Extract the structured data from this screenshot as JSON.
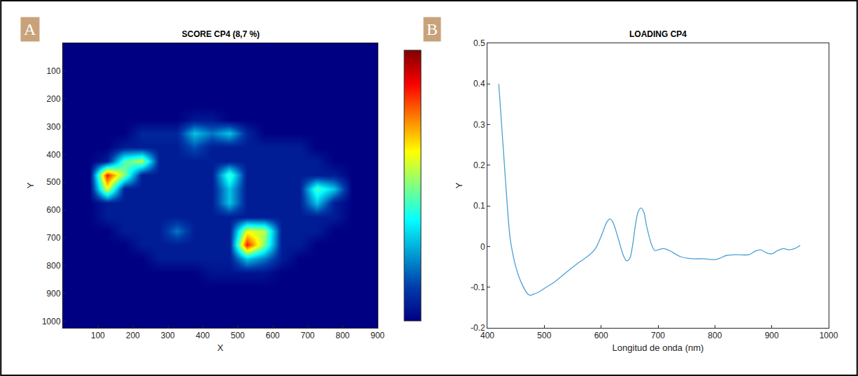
{
  "chart_data": [
    {
      "type": "heatmap",
      "annotations": [
        "A"
      ],
      "title": "SCORE CP4 (8,7 %)",
      "x_label": "X",
      "y_label": "Y",
      "x": [
        25,
        75,
        125,
        175,
        225,
        275,
        325,
        375,
        425,
        475,
        525,
        575,
        625,
        675,
        725,
        775,
        825,
        875
      ],
      "y": [
        25,
        75,
        125,
        175,
        225,
        275,
        325,
        375,
        425,
        475,
        525,
        575,
        625,
        675,
        725,
        775,
        825,
        875,
        925,
        975,
        1025
      ],
      "cells": [
        [
          0,
          0,
          0,
          0,
          0,
          0,
          0,
          0,
          0,
          0,
          0,
          0,
          0,
          0,
          0,
          0,
          0,
          0
        ],
        [
          0,
          0,
          0,
          0,
          0,
          0,
          0,
          0,
          0,
          0,
          0,
          0,
          0,
          0,
          0,
          0,
          0,
          0
        ],
        [
          0,
          0,
          0,
          0,
          0,
          0,
          0,
          0,
          0,
          0,
          0,
          0,
          0,
          0,
          0,
          0,
          0,
          0
        ],
        [
          0,
          0,
          0,
          0,
          0,
          0,
          0,
          0,
          0,
          0,
          0,
          0,
          0,
          0,
          0,
          0,
          0,
          0
        ],
        [
          0,
          0,
          0,
          0,
          0,
          0,
          0,
          0,
          0,
          0,
          0,
          0,
          0,
          0,
          0,
          0,
          0,
          0
        ],
        [
          0,
          0,
          0,
          0,
          0,
          0,
          0,
          0.05,
          0.05,
          0,
          0,
          0,
          0,
          0,
          0,
          0,
          0,
          0
        ],
        [
          0,
          0,
          0,
          0,
          0.08,
          0.08,
          0.08,
          0.3,
          0.2,
          0.3,
          0.08,
          0,
          0,
          0,
          0,
          0,
          0,
          0
        ],
        [
          0,
          0,
          0,
          0.06,
          0.06,
          0.06,
          0.06,
          0.15,
          0.06,
          0.06,
          0.06,
          0.06,
          0.06,
          0.06,
          0,
          0,
          0,
          0
        ],
        [
          0,
          0,
          0.06,
          0.45,
          0.55,
          0.06,
          0.06,
          0.06,
          0.06,
          0.06,
          0.06,
          0.06,
          0.06,
          0.06,
          0.06,
          0,
          0,
          0
        ],
        [
          0,
          0,
          0.85,
          0.5,
          0.06,
          0.06,
          0.06,
          0.06,
          0.06,
          0.45,
          0.06,
          0.06,
          0.06,
          0.06,
          0.06,
          0.06,
          0,
          0
        ],
        [
          0,
          0,
          0.6,
          0.06,
          0.06,
          0.06,
          0.06,
          0.06,
          0.06,
          0.3,
          0.06,
          0.06,
          0.06,
          0.06,
          0.45,
          0.3,
          0,
          0
        ],
        [
          0,
          0,
          0.06,
          0.06,
          0.06,
          0.06,
          0.06,
          0.06,
          0.06,
          0.3,
          0.06,
          0.06,
          0.06,
          0.06,
          0.3,
          0.06,
          0,
          0
        ],
        [
          0,
          0,
          0.06,
          0.06,
          0.06,
          0.06,
          0.06,
          0.06,
          0.06,
          0.06,
          0.06,
          0.06,
          0.06,
          0.06,
          0.06,
          0.06,
          0,
          0
        ],
        [
          0,
          0,
          0,
          0.06,
          0.06,
          0.06,
          0.2,
          0.06,
          0.06,
          0.06,
          0.6,
          0.55,
          0.06,
          0.06,
          0.06,
          0,
          0,
          0
        ],
        [
          0,
          0,
          0,
          0,
          0.06,
          0.06,
          0.06,
          0.06,
          0.06,
          0.06,
          0.85,
          0.5,
          0.06,
          0.06,
          0,
          0,
          0,
          0
        ],
        [
          0,
          0,
          0,
          0,
          0,
          0.06,
          0.06,
          0.06,
          0.06,
          0.06,
          0.3,
          0.2,
          0.06,
          0,
          0,
          0,
          0,
          0
        ],
        [
          0,
          0,
          0,
          0,
          0,
          0,
          0,
          0,
          0.04,
          0.04,
          0.04,
          0.04,
          0,
          0,
          0,
          0,
          0,
          0
        ],
        [
          0,
          0,
          0,
          0,
          0,
          0,
          0,
          0,
          0,
          0,
          0,
          0,
          0,
          0,
          0,
          0,
          0,
          0
        ],
        [
          0,
          0,
          0,
          0,
          0,
          0,
          0,
          0,
          0,
          0,
          0,
          0,
          0,
          0,
          0,
          0,
          0,
          0
        ],
        [
          0,
          0,
          0,
          0,
          0,
          0,
          0,
          0,
          0,
          0,
          0,
          0,
          0,
          0,
          0,
          0,
          0,
          0
        ],
        [
          0,
          0,
          0,
          0,
          0,
          0,
          0,
          0,
          0,
          0,
          0,
          0,
          0,
          0,
          0,
          0,
          0,
          0
        ]
      ],
      "colorbar_range": [
        0,
        1
      ],
      "xlim": [
        0,
        900
      ],
      "xticks": [
        100,
        200,
        300,
        400,
        500,
        600,
        700,
        800,
        900
      ],
      "ylim": [
        1024,
        0
      ],
      "yticks": [
        100,
        200,
        300,
        400,
        500,
        600,
        700,
        800,
        900,
        1000
      ],
      "grid": false
    },
    {
      "type": "line",
      "annotations": [
        "B"
      ],
      "title": "LOADING CP4",
      "x_label": "Longitud de onda (nm)",
      "y_label": "Y",
      "color": "#4a9fd5",
      "x": [
        420,
        425,
        430,
        435,
        440,
        445,
        450,
        460,
        470,
        475,
        480,
        490,
        500,
        520,
        540,
        560,
        580,
        590,
        600,
        610,
        615,
        620,
        630,
        640,
        645,
        650,
        655,
        660,
        665,
        670,
        675,
        680,
        690,
        695,
        700,
        710,
        720,
        740,
        760,
        780,
        800,
        810,
        820,
        840,
        860,
        870,
        880,
        890,
        900,
        910,
        920,
        930,
        940,
        950
      ],
      "values": [
        0.4,
        0.3,
        0.2,
        0.1,
        0.02,
        -0.02,
        -0.05,
        -0.09,
        -0.115,
        -0.12,
        -0.118,
        -0.112,
        -0.103,
        -0.085,
        -0.062,
        -0.04,
        -0.02,
        -0.005,
        0.025,
        0.06,
        0.068,
        0.062,
        0.02,
        -0.025,
        -0.035,
        -0.03,
        0.0,
        0.05,
        0.085,
        0.095,
        0.085,
        0.05,
        0.0,
        -0.01,
        -0.008,
        -0.005,
        -0.01,
        -0.025,
        -0.03,
        -0.03,
        -0.032,
        -0.028,
        -0.022,
        -0.02,
        -0.02,
        -0.012,
        -0.008,
        -0.015,
        -0.018,
        -0.01,
        -0.005,
        -0.008,
        -0.005,
        0.003
      ],
      "xlim": [
        400,
        1000
      ],
      "xticks": [
        400,
        500,
        600,
        700,
        800,
        900,
        1000
      ],
      "ylim": [
        -0.2,
        0.5
      ],
      "yticks": [
        -0.2,
        -0.1,
        0,
        0.1,
        0.2,
        0.3,
        0.4,
        0.5
      ],
      "grid": false
    }
  ]
}
